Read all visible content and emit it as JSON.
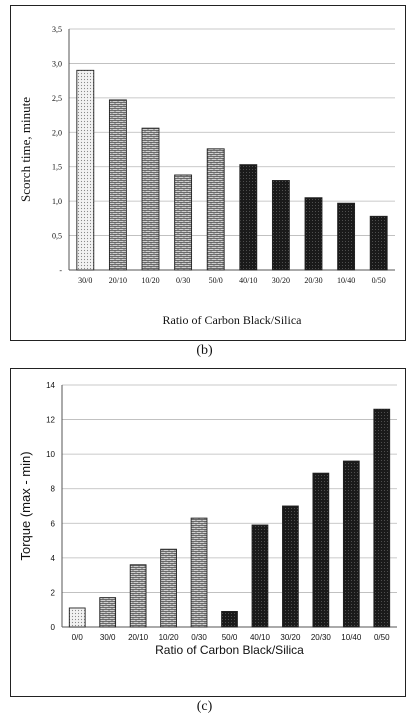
{
  "chart_data": [
    {
      "type": "bar",
      "xlabel": "Ratio of Carbon Black/Silica",
      "ylabel": "Scorch time, minute",
      "ylim": [
        0,
        3.5
      ],
      "ytick_labels": [
        "-",
        "0,5",
        "1,0",
        "1,5",
        "2,0",
        "2,5",
        "3,0",
        "3,5"
      ],
      "grid": true,
      "categories": [
        "30/0",
        "20/10",
        "10/20",
        "0/30",
        "50/0",
        "40/10",
        "30/20",
        "20/30",
        "10/40",
        "0/50"
      ],
      "values": [
        2.9,
        2.47,
        2.06,
        1.38,
        1.76,
        1.53,
        1.3,
        1.05,
        0.97,
        0.78
      ],
      "caption": "(b)"
    },
    {
      "type": "bar",
      "xlabel": "Ratio of Carbon Black/Silica",
      "ylabel": "Torque (max - min)",
      "ylim": [
        0,
        14
      ],
      "ytick_labels": [
        "0",
        "2",
        "4",
        "6",
        "8",
        "10",
        "12",
        "14"
      ],
      "grid": true,
      "categories": [
        "0/0",
        "30/0",
        "20/10",
        "10/20",
        "0/30",
        "50/0",
        "40/10",
        "30/20",
        "20/30",
        "10/40",
        "0/50"
      ],
      "values": [
        1.1,
        1.7,
        3.6,
        4.5,
        6.3,
        0.9,
        5.9,
        7.0,
        8.9,
        9.6,
        12.6
      ],
      "caption": "(c)"
    }
  ]
}
